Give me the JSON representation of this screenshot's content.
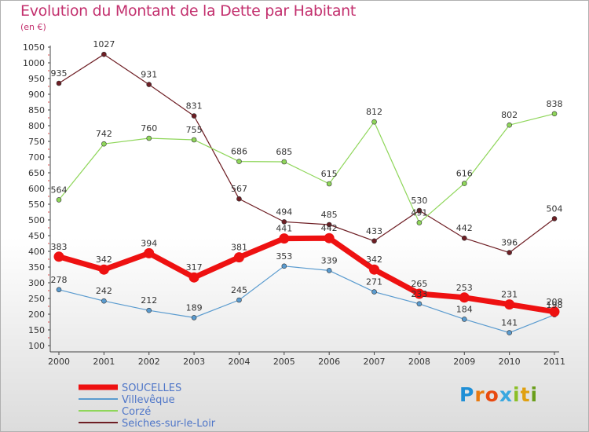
{
  "chart_data": {
    "type": "line",
    "title": "Evolution du Montant de la Dette par Habitant",
    "subtitle": "(en €)",
    "x": [
      "2000",
      "2001",
      "2002",
      "2003",
      "2004",
      "2005",
      "2006",
      "2007",
      "2008",
      "2009",
      "2010",
      "2011"
    ],
    "ylim": [
      100,
      1050
    ],
    "yticks": [
      100,
      150,
      200,
      250,
      300,
      350,
      400,
      450,
      500,
      550,
      600,
      650,
      700,
      750,
      800,
      850,
      900,
      950,
      1000,
      1050
    ],
    "grid": false,
    "legend_position": "bottom-left",
    "series": [
      {
        "name": "SOUCELLES",
        "color": "#ee1111",
        "values": [
          383,
          342,
          394,
          317,
          381,
          441,
          442,
          342,
          265,
          253,
          231,
          208
        ]
      },
      {
        "name": "Villevêque",
        "color": "#5a9bcf",
        "values": [
          278,
          242,
          212,
          189,
          245,
          353,
          339,
          271,
          233,
          184,
          141,
          198
        ]
      },
      {
        "name": "Corzé",
        "color": "#8fd65a",
        "values": [
          564,
          742,
          760,
          755,
          686,
          685,
          615,
          812,
          491,
          616,
          802,
          838
        ]
      },
      {
        "name": "Seiches-sur-le-Loir",
        "color": "#6e1e24",
        "values": [
          935,
          1027,
          931,
          831,
          567,
          494,
          485,
          433,
          530,
          442,
          396,
          504
        ]
      }
    ]
  },
  "logo": {
    "text": "Proxiti"
  }
}
